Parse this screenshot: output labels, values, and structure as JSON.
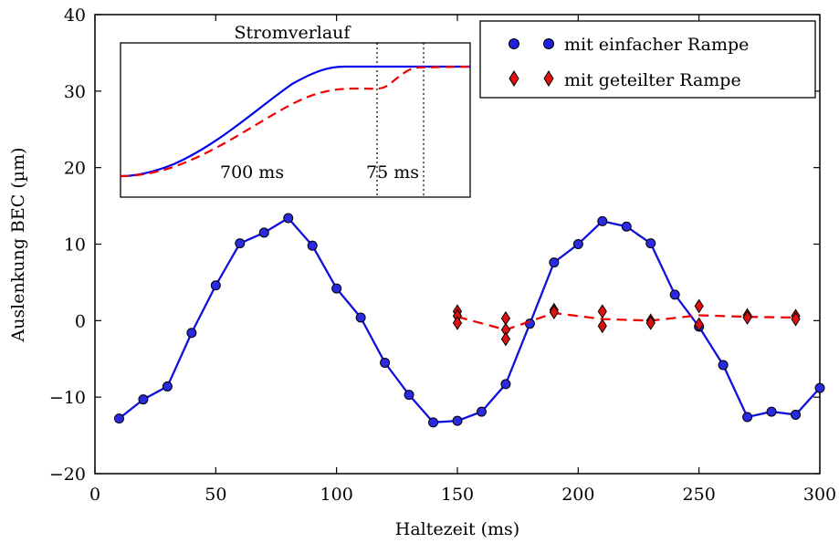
{
  "chart_data": {
    "type": "line",
    "title": "",
    "xlabel": "Haltezeit (ms)",
    "ylabel": "Auslenkung BEC (µm)",
    "xlim": [
      0,
      300
    ],
    "ylim": [
      -20,
      40
    ],
    "xticks": [
      "0",
      "50",
      "100",
      "150",
      "200",
      "250",
      "300"
    ],
    "yticks": [
      "−20",
      "−10",
      "0",
      "10",
      "20",
      "30",
      "40"
    ],
    "grid": false,
    "legend_position": "top-right",
    "series": [
      {
        "name": "mit einfacher Rampe",
        "color": "#0000ee",
        "marker": "circle",
        "line": "solid",
        "x": [
          10,
          20,
          30,
          40,
          50,
          60,
          70,
          80,
          90,
          100,
          110,
          120,
          130,
          140,
          150,
          160,
          170,
          180,
          190,
          200,
          210,
          220,
          230,
          240,
          250,
          260,
          270,
          280,
          290,
          300
        ],
        "y": [
          -12.8,
          -10.3,
          -8.6,
          -1.6,
          4.6,
          10.1,
          11.5,
          13.4,
          9.8,
          4.2,
          0.4,
          -5.5,
          -9.7,
          -13.3,
          -13.1,
          -11.9,
          -8.3,
          -0.4,
          7.6,
          10.0,
          13.0,
          12.3,
          10.1,
          3.4,
          -0.8,
          -5.8,
          -12.6,
          -11.9,
          -12.3,
          -8.8
        ]
      },
      {
        "name": "mit geteilter Rampe",
        "color": "#ee0000",
        "marker": "diamond",
        "line": "dashed",
        "x": [
          150,
          170,
          190,
          210,
          230,
          250,
          270,
          290
        ],
        "y": [
          0.5,
          -1.2,
          1.0,
          0.2,
          0.0,
          0.7,
          0.5,
          0.4
        ],
        "points": [
          [
            150,
            1.2
          ],
          [
            150,
            0.6
          ],
          [
            150,
            -0.3
          ],
          [
            170,
            0.3
          ],
          [
            170,
            -1.2
          ],
          [
            170,
            -2.4
          ],
          [
            190,
            1.4
          ],
          [
            190,
            1.1
          ],
          [
            210,
            1.2
          ],
          [
            210,
            -0.7
          ],
          [
            230,
            0.0
          ],
          [
            230,
            -0.3
          ],
          [
            250,
            1.9
          ],
          [
            250,
            -0.5
          ],
          [
            270,
            0.7
          ],
          [
            270,
            0.4
          ],
          [
            290,
            0.6
          ],
          [
            290,
            0.2
          ]
        ]
      }
    ],
    "inset": {
      "title": "Stromverlauf",
      "annotations": [
        "700 ms",
        "75 ms"
      ]
    }
  }
}
